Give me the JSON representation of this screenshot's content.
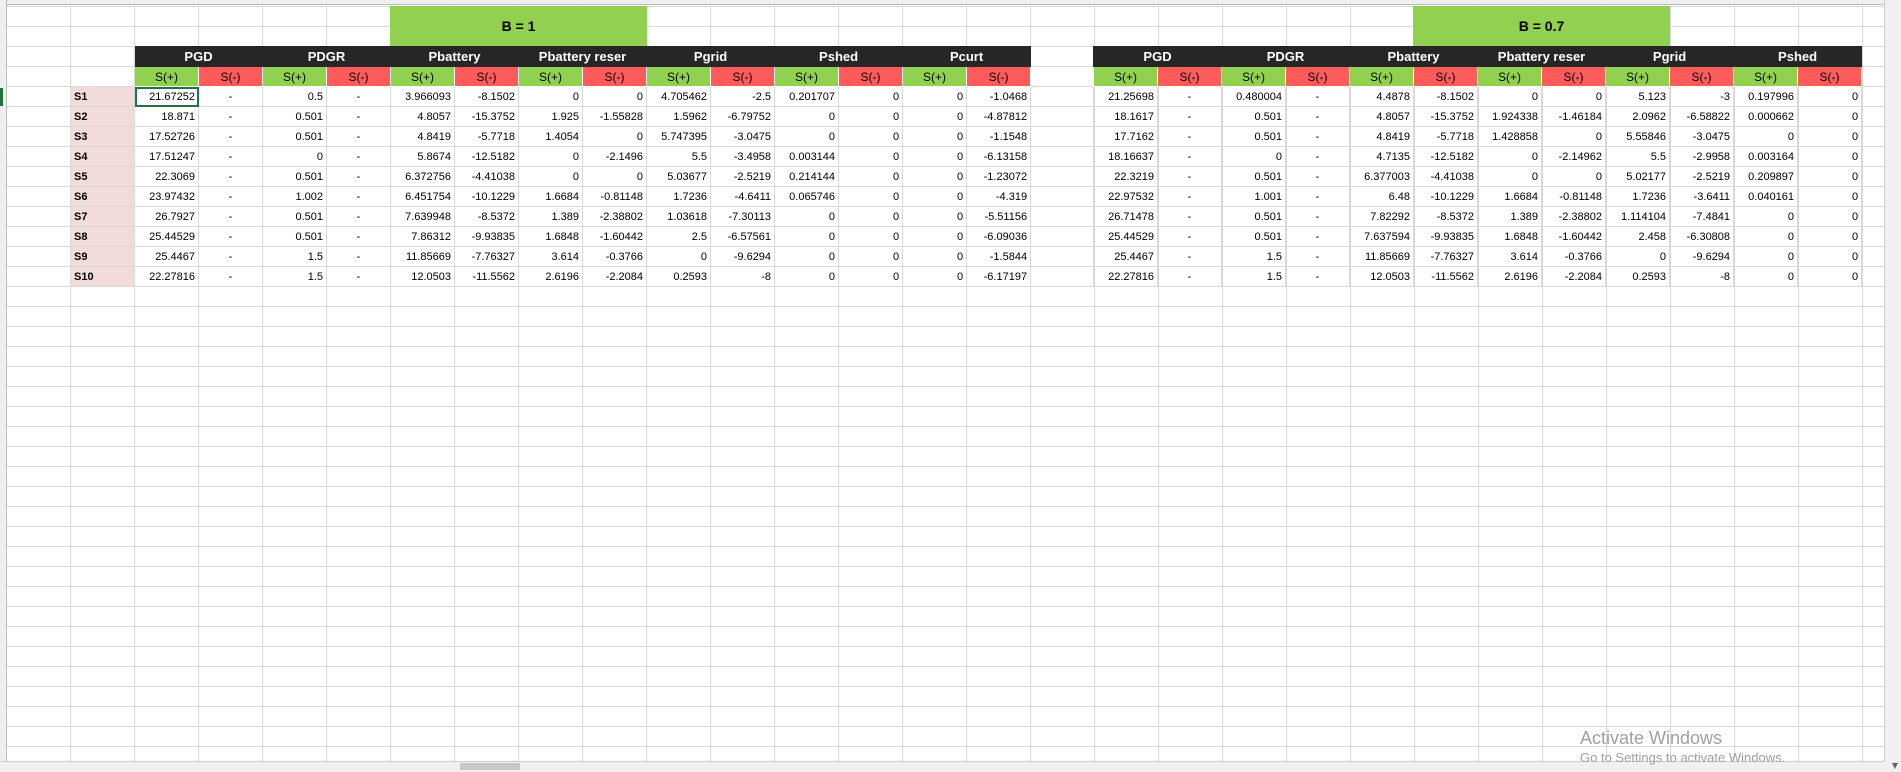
{
  "blocks": [
    {
      "title": "B = 1",
      "groups": [
        "PGD",
        "PDGR",
        "Pbattery",
        "Pbattery reser",
        "Pgrid",
        "Pshed",
        "Pcurt"
      ],
      "sub_plus": "S(+)",
      "sub_minus": "S(-)",
      "rows": [
        [
          "21.67252",
          "-",
          "0.5",
          "-",
          "3.966093",
          "-8.1502",
          "0",
          "0",
          "4.705462",
          "-2.5",
          "0.201707",
          "0",
          "0",
          "-1.0468"
        ],
        [
          "18.871",
          "-",
          "0.501",
          "-",
          "4.8057",
          "-15.3752",
          "1.925",
          "-1.55828",
          "1.5962",
          "-6.79752",
          "0",
          "0",
          "0",
          "-4.87812"
        ],
        [
          "17.52726",
          "-",
          "0.501",
          "-",
          "4.8419",
          "-5.7718",
          "1.4054",
          "0",
          "5.747395",
          "-3.0475",
          "0",
          "0",
          "0",
          "-1.1548"
        ],
        [
          "17.51247",
          "-",
          "0",
          "-",
          "5.8674",
          "-12.5182",
          "0",
          "-2.1496",
          "5.5",
          "-3.4958",
          "0.003144",
          "0",
          "0",
          "-6.13158"
        ],
        [
          "22.3069",
          "-",
          "0.501",
          "-",
          "6.372756",
          "-4.41038",
          "0",
          "0",
          "5.03677",
          "-2.5219",
          "0.214144",
          "0",
          "0",
          "-1.23072"
        ],
        [
          "23.97432",
          "-",
          "1.002",
          "-",
          "6.451754",
          "-10.1229",
          "1.6684",
          "-0.81148",
          "1.7236",
          "-4.6411",
          "0.065746",
          "0",
          "0",
          "-4.319"
        ],
        [
          "26.7927",
          "-",
          "0.501",
          "-",
          "7.639948",
          "-8.5372",
          "1.389",
          "-2.38802",
          "1.03618",
          "-7.30113",
          "0",
          "0",
          "0",
          "-5.51156"
        ],
        [
          "25.44529",
          "-",
          "0.501",
          "-",
          "7.86312",
          "-9.93835",
          "1.6848",
          "-1.60442",
          "2.5",
          "-6.57561",
          "0",
          "0",
          "0",
          "-6.09036"
        ],
        [
          "25.4467",
          "-",
          "1.5",
          "-",
          "11.85669",
          "-7.76327",
          "3.614",
          "-0.3766",
          "0",
          "-9.6294",
          "0",
          "0",
          "0",
          "-1.5844"
        ],
        [
          "22.27816",
          "-",
          "1.5",
          "-",
          "12.0503",
          "-11.5562",
          "2.6196",
          "-2.2084",
          "0.2593",
          "-8",
          "0",
          "0",
          "0",
          "-6.17197"
        ]
      ]
    },
    {
      "title": "B = 0.7",
      "groups": [
        "PGD",
        "PDGR",
        "Pbattery",
        "Pbattery reser",
        "Pgrid",
        "Pshed"
      ],
      "sub_plus": "S(+)",
      "sub_minus": "S(-)",
      "rows": [
        [
          "21.25698",
          "-",
          "0.480004",
          "-",
          "4.4878",
          "-8.1502",
          "0",
          "0",
          "5.123",
          "-3",
          "0.197996",
          "0"
        ],
        [
          "18.1617",
          "-",
          "0.501",
          "-",
          "4.8057",
          "-15.3752",
          "1.924338",
          "-1.46184",
          "2.0962",
          "-6.58822",
          "0.000662",
          "0"
        ],
        [
          "17.7162",
          "-",
          "0.501",
          "-",
          "4.8419",
          "-5.7718",
          "1.428858",
          "0",
          "5.55846",
          "-3.0475",
          "0",
          "0"
        ],
        [
          "18.16637",
          "-",
          "0",
          "-",
          "4.7135",
          "-12.5182",
          "0",
          "-2.14962",
          "5.5",
          "-2.9958",
          "0.003164",
          "0"
        ],
        [
          "22.3219",
          "-",
          "0.501",
          "-",
          "6.377003",
          "-4.41038",
          "0",
          "0",
          "5.02177",
          "-2.5219",
          "0.209897",
          "0"
        ],
        [
          "22.97532",
          "-",
          "1.001",
          "-",
          "6.48",
          "-10.1229",
          "1.6684",
          "-0.81148",
          "1.7236",
          "-3.6411",
          "0.040161",
          "0"
        ],
        [
          "26.71478",
          "-",
          "0.501",
          "-",
          "7.82292",
          "-8.5372",
          "1.389",
          "-2.38802",
          "1.114104",
          "-7.4841",
          "0",
          "0"
        ],
        [
          "25.44529",
          "-",
          "0.501",
          "-",
          "7.637594",
          "-9.93835",
          "1.6848",
          "-1.60442",
          "2.458",
          "-6.30808",
          "0",
          "0"
        ],
        [
          "25.4467",
          "-",
          "1.5",
          "-",
          "11.85669",
          "-7.76327",
          "3.614",
          "-0.3766",
          "0",
          "-9.6294",
          "0",
          "0"
        ],
        [
          "22.27816",
          "-",
          "1.5",
          "-",
          "12.0503",
          "-11.5562",
          "2.6196",
          "-2.2084",
          "0.2593",
          "-8",
          "0",
          "0"
        ]
      ]
    }
  ],
  "row_labels": [
    "S1",
    "S2",
    "S3",
    "S4",
    "S5",
    "S6",
    "S7",
    "S8",
    "S9",
    "S10"
  ],
  "watermark": {
    "line1": "Activate Windows",
    "line2": "Go to Settings to activate Windows."
  },
  "colors": {
    "band_green": "#92d050",
    "header_dark": "#262626",
    "minus_red": "#ff5b5b",
    "label_pink": "#f2dcdb",
    "selection": "#217346"
  }
}
